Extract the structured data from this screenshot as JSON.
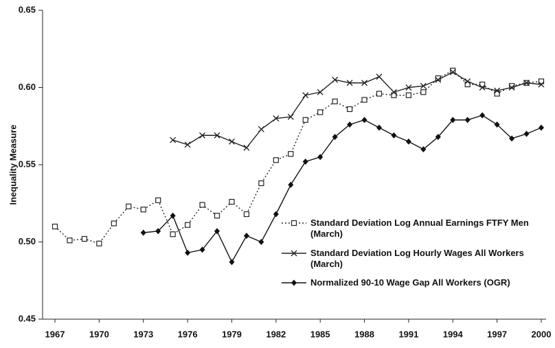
{
  "chart_data": {
    "type": "line",
    "y_label": "Inequality Measure",
    "x": [
      1967,
      1968,
      1969,
      1970,
      1971,
      1972,
      1973,
      1974,
      1975,
      1976,
      1977,
      1978,
      1979,
      1980,
      1981,
      1982,
      1983,
      1984,
      1985,
      1986,
      1987,
      1988,
      1989,
      1990,
      1991,
      1992,
      1993,
      1994,
      1995,
      1996,
      1997,
      1998,
      1999,
      2000
    ],
    "xlim": [
      1967,
      2000
    ],
    "xticks": [
      1967,
      1970,
      1973,
      1976,
      1979,
      1982,
      1985,
      1988,
      1991,
      1994,
      1997,
      2000
    ],
    "ylim": [
      0.45,
      0.65
    ],
    "yticks": [
      0.45,
      {
        "value": 0.5,
        "label": "0.50"
      },
      0.55,
      {
        "value": 0.6,
        "label": "0.60"
      },
      0.65
    ],
    "series": [
      {
        "name": "Standard Deviation Log Annual Earnings FTFY Men (March)",
        "color": "#222",
        "style": "dotted",
        "marker": "square",
        "values": [
          0.51,
          0.501,
          0.502,
          0.499,
          0.512,
          0.523,
          0.521,
          0.527,
          0.505,
          0.511,
          0.524,
          0.517,
          0.526,
          0.518,
          0.538,
          0.553,
          0.557,
          0.579,
          0.584,
          0.591,
          0.586,
          0.592,
          0.596,
          0.595,
          0.595,
          0.597,
          0.606,
          0.611,
          0.602,
          0.602,
          0.596,
          0.601,
          0.603,
          0.604
        ]
      },
      {
        "name": "Standard Deviation Log Hourly Wages All Workers (March)",
        "color": "#222",
        "style": "solid",
        "marker": "x",
        "values": [
          null,
          null,
          null,
          null,
          null,
          null,
          null,
          null,
          0.566,
          0.563,
          0.569,
          0.569,
          0.565,
          0.561,
          0.573,
          0.58,
          0.581,
          0.595,
          0.597,
          0.605,
          0.603,
          0.603,
          0.607,
          0.597,
          0.6,
          0.601,
          0.605,
          0.61,
          0.604,
          0.6,
          0.598,
          0.6,
          0.603,
          0.602
        ]
      },
      {
        "name": "Normalized 90-10 Wage Gap All Workers (OGR)",
        "color": "#111",
        "style": "solid",
        "marker": "diamond",
        "values": [
          null,
          null,
          null,
          null,
          null,
          null,
          0.506,
          0.507,
          0.517,
          0.493,
          0.495,
          0.507,
          0.487,
          0.504,
          0.5,
          0.518,
          0.537,
          0.552,
          0.555,
          0.568,
          0.576,
          0.579,
          0.574,
          0.569,
          0.565,
          0.56,
          0.568,
          0.579,
          0.579,
          0.582,
          0.576,
          0.567,
          0.57,
          0.574
        ]
      }
    ]
  }
}
